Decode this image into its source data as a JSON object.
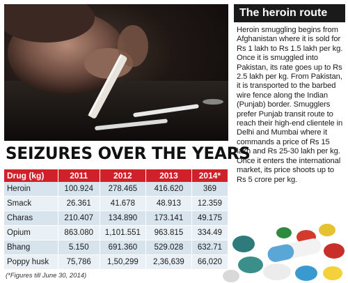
{
  "photo": {
    "alt_icon": "cocaine-lines-photo"
  },
  "sidebar": {
    "title": "The heroin route",
    "body": "Heroin smuggling begins from Afghanistan where it is sold for Rs 1 lakh to Rs 1.5 lakh per kg. Once it is smuggled into Pakistan, its rate goes up to Rs 2.5 lakh per kg. From Pakistan, it is transported to the barbed wire fence along the Indian (Punjab) border. Smugglers prefer Punjab transit route to reach their high-end clientele in Delhi and Mumbai where it commands a price of Rs 15 lakh and Rs 25-30 lakh per kg. Once it enters the international market, its price shoots up to Rs 5 crore per kg."
  },
  "headline": "SEIZURES OVER THE YEARS",
  "table": {
    "headers": [
      "Drug (kg)",
      "2011",
      "2012",
      "2013",
      "2014*"
    ],
    "rows": [
      [
        "Heroin",
        "100.924",
        "278.465",
        "416.620",
        "369"
      ],
      [
        "Smack",
        "26.361",
        "41.678",
        "48.913",
        "12.359"
      ],
      [
        "Charas",
        "210.407",
        "134.890",
        "173.141",
        "49.175"
      ],
      [
        "Opium",
        "863.080",
        "1,101.551",
        "963.815",
        "334.49"
      ],
      [
        "Bhang",
        "5.150",
        "691.360",
        "529.028",
        "632.71"
      ],
      [
        "Poppy husk",
        "75,786",
        "1,50,299",
        "2,36,639",
        "66,020"
      ]
    ]
  },
  "footnote": "(*Figures till June 30, 2014)",
  "colors": {
    "header_red": "#d0202b",
    "row_blue": "#d7e4ee",
    "row_light": "#eaf1f6",
    "title_bar": "#1a1a1a"
  },
  "pills_image": {
    "alt_icon": "pills-photo"
  }
}
